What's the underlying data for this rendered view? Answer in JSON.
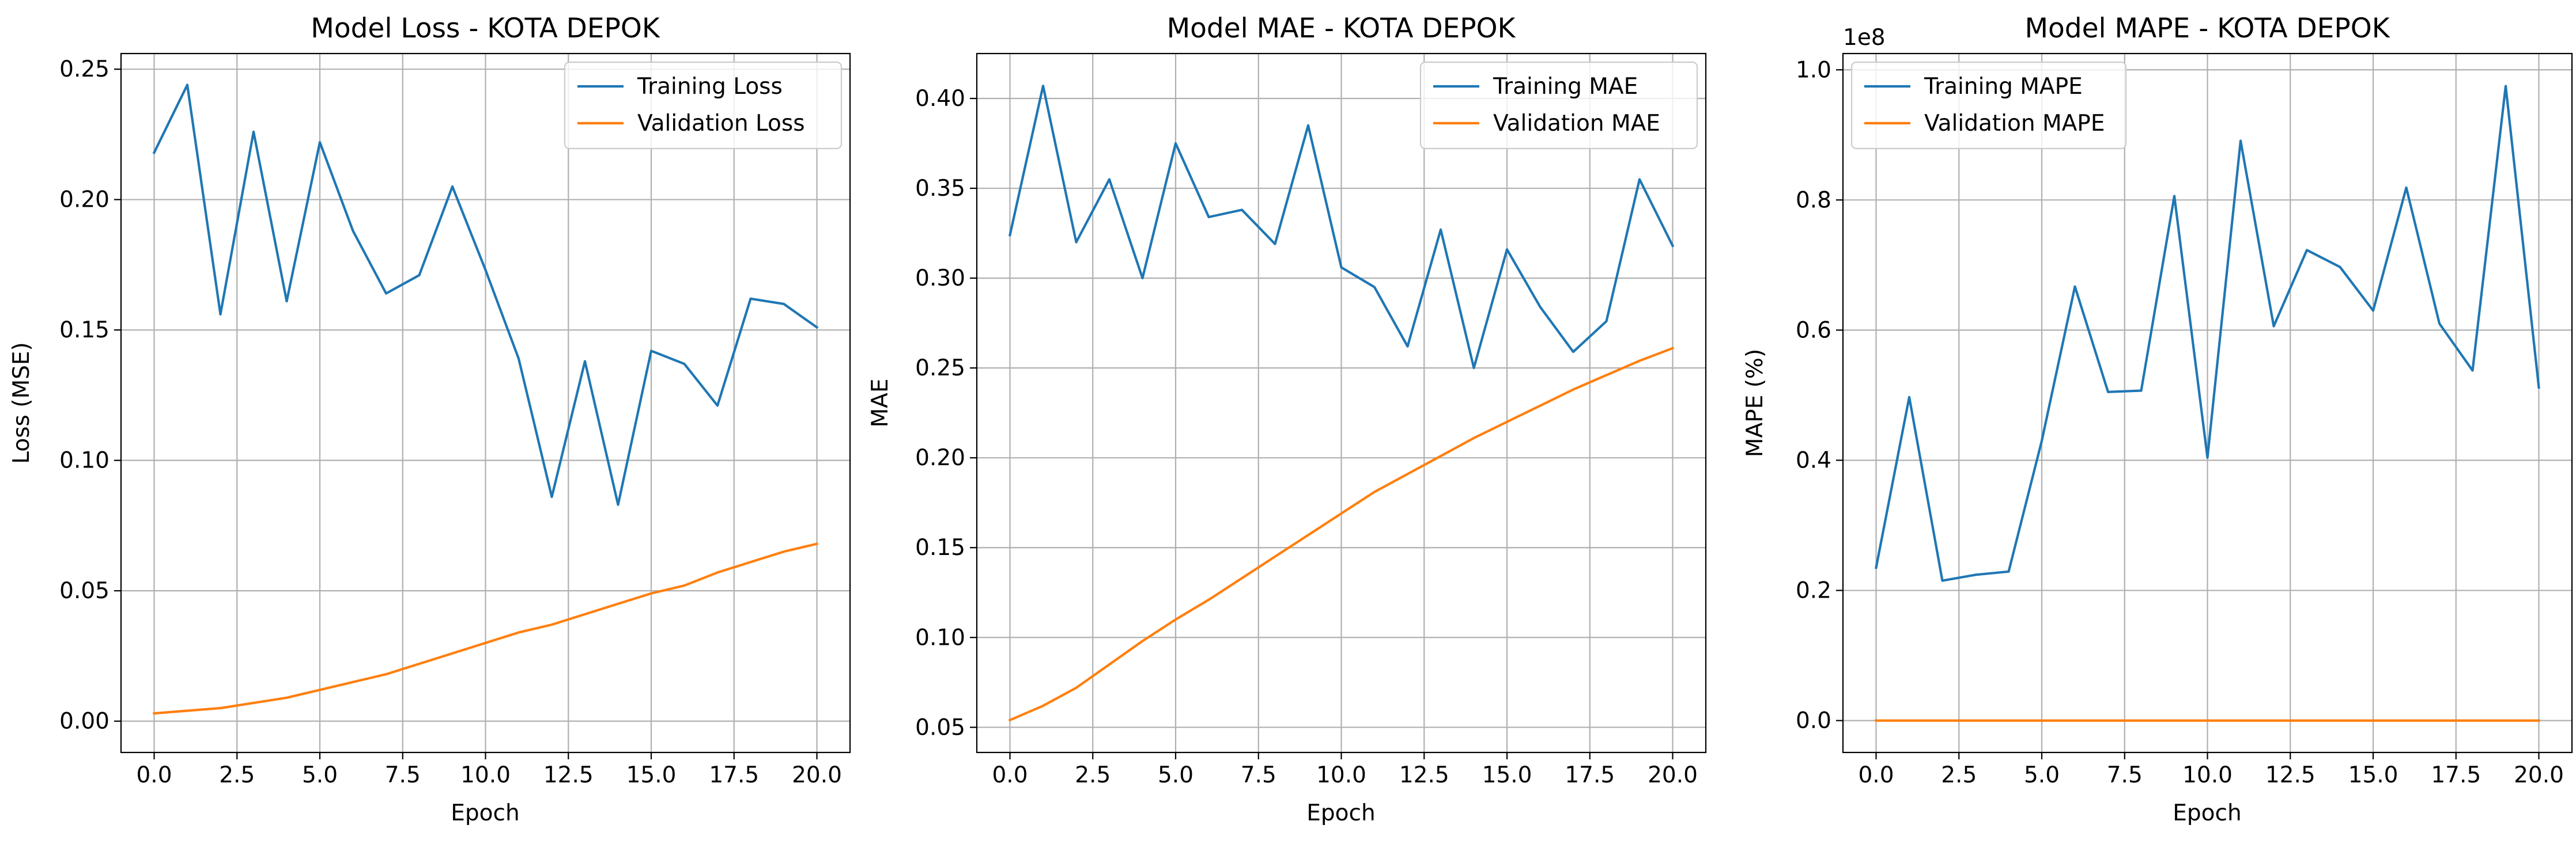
{
  "colors": {
    "training": "#1f77b4",
    "validation": "#ff7f0e",
    "grid": "#b0b0b0"
  },
  "chart_data": [
    {
      "type": "line",
      "title": "Model Loss - KOTA DEPOK",
      "xlabel": "Epoch",
      "ylabel": "Loss (MSE)",
      "xlim": [
        -1.0,
        21.0
      ],
      "ylim": [
        -0.012,
        0.256
      ],
      "xticks": [
        0.0,
        2.5,
        5.0,
        7.5,
        10.0,
        12.5,
        15.0,
        17.5,
        20.0
      ],
      "xtick_labels": [
        "0.0",
        "2.5",
        "5.0",
        "7.5",
        "10.0",
        "12.5",
        "15.0",
        "17.5",
        "20.0"
      ],
      "yticks": [
        0.0,
        0.05,
        0.1,
        0.15,
        0.2,
        0.25
      ],
      "ytick_labels": [
        "0.00",
        "0.05",
        "0.10",
        "0.15",
        "0.20",
        "0.25"
      ],
      "grid": true,
      "legend_position": "top-right",
      "x": [
        0,
        1,
        2,
        3,
        4,
        5,
        6,
        7,
        8,
        9,
        10,
        11,
        12,
        13,
        14,
        15,
        16,
        17,
        18,
        19,
        20
      ],
      "series": [
        {
          "name": "Training Loss",
          "color": "#1f77b4",
          "values": [
            0.218,
            0.244,
            0.156,
            0.226,
            0.161,
            0.222,
            0.188,
            0.164,
            0.171,
            0.205,
            0.173,
            0.139,
            0.086,
            0.138,
            0.083,
            0.142,
            0.137,
            0.121,
            0.162,
            0.16,
            0.151
          ]
        },
        {
          "name": "Validation Loss",
          "color": "#ff7f0e",
          "values": [
            0.003,
            0.004,
            0.005,
            0.007,
            0.009,
            0.012,
            0.015,
            0.018,
            0.022,
            0.026,
            0.03,
            0.034,
            0.037,
            0.041,
            0.045,
            0.049,
            0.052,
            0.057,
            0.061,
            0.065,
            0.068
          ]
        }
      ]
    },
    {
      "type": "line",
      "title": "Model MAE - KOTA DEPOK",
      "xlabel": "Epoch",
      "ylabel": "MAE",
      "xlim": [
        -1.0,
        21.0
      ],
      "ylim": [
        0.036,
        0.425
      ],
      "xticks": [
        0.0,
        2.5,
        5.0,
        7.5,
        10.0,
        12.5,
        15.0,
        17.5,
        20.0
      ],
      "xtick_labels": [
        "0.0",
        "2.5",
        "5.0",
        "7.5",
        "10.0",
        "12.5",
        "15.0",
        "17.5",
        "20.0"
      ],
      "yticks": [
        0.05,
        0.1,
        0.15,
        0.2,
        0.25,
        0.3,
        0.35,
        0.4
      ],
      "ytick_labels": [
        "0.05",
        "0.10",
        "0.15",
        "0.20",
        "0.25",
        "0.30",
        "0.35",
        "0.40"
      ],
      "grid": true,
      "legend_position": "top-right",
      "x": [
        0,
        1,
        2,
        3,
        4,
        5,
        6,
        7,
        8,
        9,
        10,
        11,
        12,
        13,
        14,
        15,
        16,
        17,
        18,
        19,
        20
      ],
      "series": [
        {
          "name": "Training MAE",
          "color": "#1f77b4",
          "values": [
            0.324,
            0.407,
            0.32,
            0.355,
            0.3,
            0.375,
            0.334,
            0.338,
            0.319,
            0.385,
            0.306,
            0.295,
            0.262,
            0.327,
            0.25,
            0.316,
            0.284,
            0.259,
            0.276,
            0.355,
            0.318
          ]
        },
        {
          "name": "Validation MAE",
          "color": "#ff7f0e",
          "values": [
            0.054,
            0.062,
            0.072,
            0.085,
            0.098,
            0.11,
            0.121,
            0.133,
            0.145,
            0.157,
            0.169,
            0.181,
            0.191,
            0.201,
            0.211,
            0.22,
            0.229,
            0.238,
            0.246,
            0.254,
            0.261
          ]
        }
      ]
    },
    {
      "type": "line",
      "title": "Model MAPE - KOTA DEPOK",
      "xlabel": "Epoch",
      "ylabel": "MAPE (%)",
      "scale_label": "1e8",
      "xlim": [
        -1.0,
        21.0
      ],
      "ylim": [
        -0.049,
        1.025
      ],
      "xticks": [
        0.0,
        2.5,
        5.0,
        7.5,
        10.0,
        12.5,
        15.0,
        17.5,
        20.0
      ],
      "xtick_labels": [
        "0.0",
        "2.5",
        "5.0",
        "7.5",
        "10.0",
        "12.5",
        "15.0",
        "17.5",
        "20.0"
      ],
      "yticks": [
        0.0,
        0.2,
        0.4,
        0.6,
        0.8,
        1.0
      ],
      "ytick_labels": [
        "0.0",
        "0.2",
        "0.4",
        "0.6",
        "0.8",
        "1.0"
      ],
      "grid": true,
      "legend_position": "top-left",
      "x": [
        0,
        1,
        2,
        3,
        4,
        5,
        6,
        7,
        8,
        9,
        10,
        11,
        12,
        13,
        14,
        15,
        16,
        17,
        18,
        19,
        20
      ],
      "series": [
        {
          "name": "Training MAPE",
          "color": "#1f77b4",
          "values": [
            0.235,
            0.497,
            0.215,
            0.224,
            0.229,
            0.43,
            0.667,
            0.505,
            0.507,
            0.806,
            0.404,
            0.891,
            0.606,
            0.723,
            0.697,
            0.63,
            0.819,
            0.61,
            0.538,
            0.975,
            0.512
          ]
        },
        {
          "name": "Validation MAPE",
          "color": "#ff7f0e",
          "values": [
            0,
            0,
            0,
            0,
            0,
            0,
            0,
            0,
            0,
            0,
            0,
            0,
            0,
            0,
            0,
            0,
            0,
            0,
            0,
            0,
            0
          ]
        }
      ]
    }
  ]
}
